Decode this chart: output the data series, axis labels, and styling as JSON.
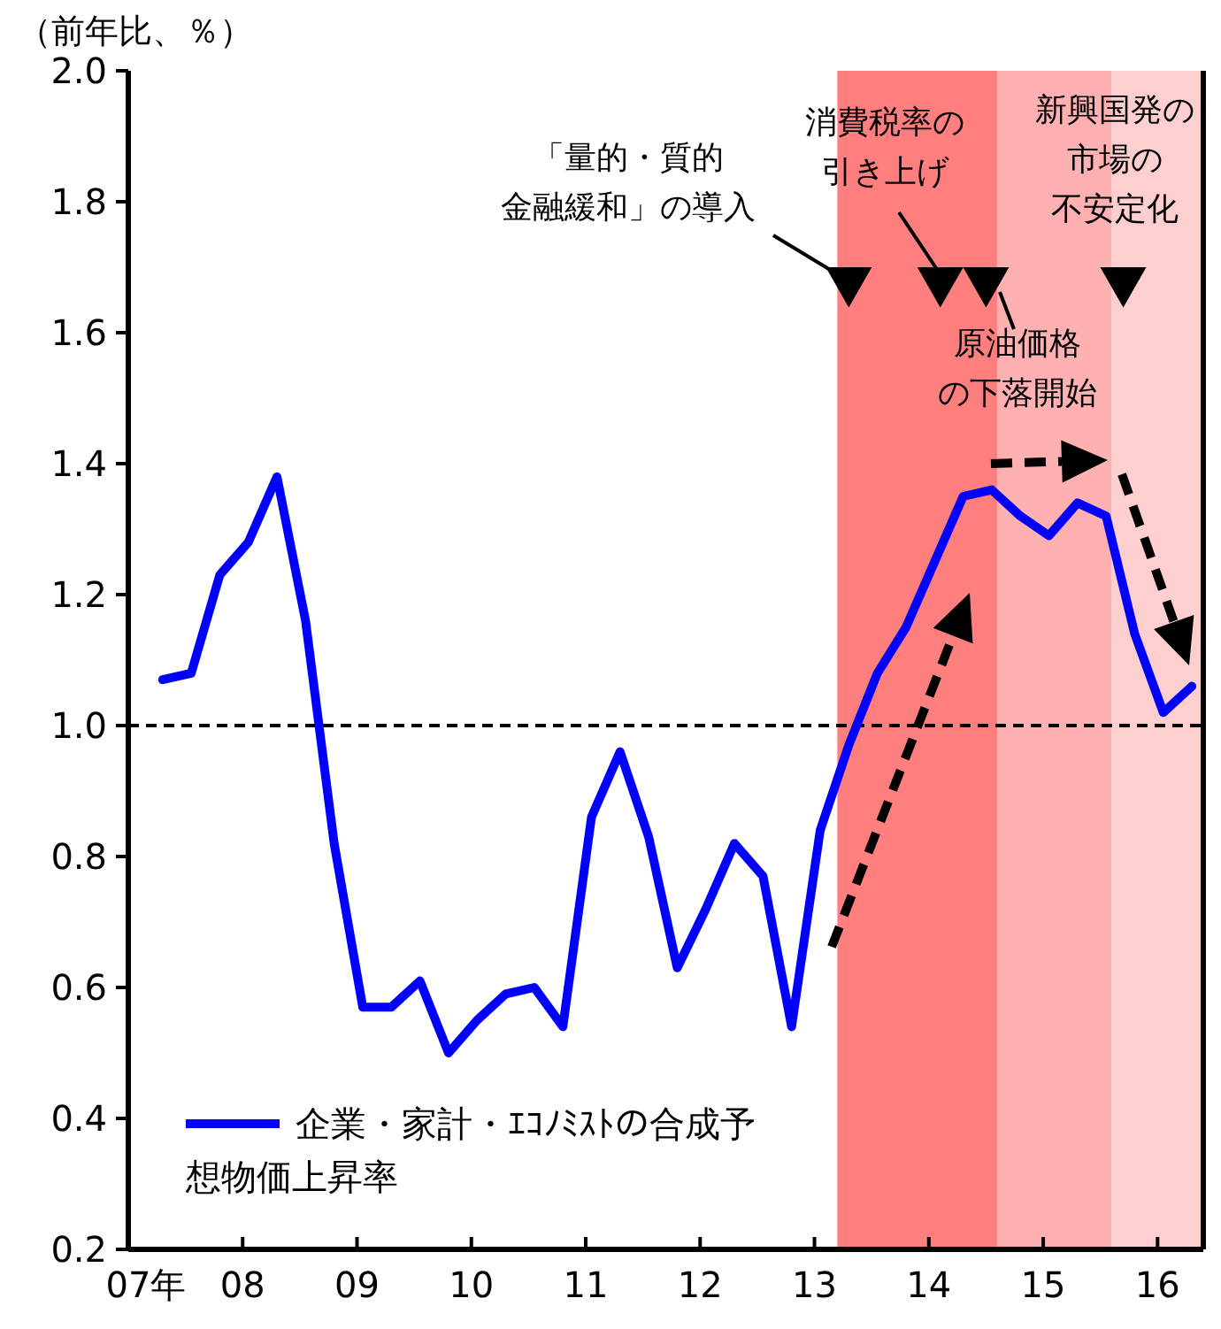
{
  "chart_data": {
    "type": "line",
    "ylabel": "（前年比、％）",
    "x": [
      7.3,
      7.55,
      7.8,
      8.05,
      8.3,
      8.55,
      8.8,
      9.05,
      9.3,
      9.55,
      9.8,
      10.05,
      10.3,
      10.55,
      10.8,
      11.05,
      11.3,
      11.55,
      11.8,
      12.05,
      12.3,
      12.55,
      12.8,
      13.05,
      13.3,
      13.55,
      13.8,
      14.05,
      14.3,
      14.55,
      14.8,
      15.05,
      15.3,
      15.55,
      15.8,
      16.05,
      16.3
    ],
    "series": [
      {
        "name": "企業・家計・ｴｺﾉﾐｽﾄの合成予想物価上昇率",
        "color": "#0000ff",
        "values": [
          1.07,
          1.08,
          1.23,
          1.28,
          1.38,
          1.16,
          0.82,
          0.57,
          0.57,
          0.61,
          0.5,
          0.55,
          0.59,
          0.6,
          0.54,
          0.86,
          0.96,
          0.83,
          0.63,
          0.72,
          0.82,
          0.77,
          0.54,
          0.84,
          0.97,
          1.08,
          1.15,
          1.25,
          1.35,
          1.36,
          1.32,
          1.29,
          1.34,
          1.32,
          1.14,
          1.02,
          1.06
        ]
      },
      {
        "type": "scatter",
        "marker": "triangle",
        "color": "#000000",
        "x": [
          13.3,
          14.1,
          14.5,
          15.7
        ],
        "values": [
          1.67,
          1.67,
          1.67,
          1.67
        ]
      }
    ],
    "xlim": [
      7,
      16.4
    ],
    "xticks": [
      {
        "value": 7,
        "label": "07年"
      },
      {
        "value": 8,
        "label": "08"
      },
      {
        "value": 9,
        "label": "09"
      },
      10,
      11,
      12,
      13,
      14,
      15,
      16
    ],
    "ylim": [
      0.2,
      2.0
    ],
    "yticks": [
      {
        "value": 0.2,
        "label": "0.2"
      },
      {
        "value": 0.4,
        "label": "0.4"
      },
      {
        "value": 0.6,
        "label": "0.6"
      },
      {
        "value": 0.8,
        "label": "0.8"
      },
      {
        "value": 1.0,
        "label": "1.0"
      },
      {
        "value": 1.2,
        "label": "1.2"
      },
      {
        "value": 1.4,
        "label": "1.4"
      },
      {
        "value": 1.6,
        "label": "1.6"
      },
      {
        "value": 1.8,
        "label": "1.8"
      },
      {
        "value": 2.0,
        "label": "2.0"
      }
    ],
    "ref_lines": [
      {
        "axis": "y",
        "value": 1.0,
        "color": "#000000",
        "line_style": "dashed"
      }
    ],
    "bands": [
      {
        "axis": "x",
        "from": 13.2,
        "to": 14.6,
        "color": "#ff7f7f"
      },
      {
        "axis": "x",
        "from": 14.6,
        "to": 15.6,
        "color": "#ffb0b0"
      },
      {
        "axis": "x",
        "from": 15.6,
        "to": 16.4,
        "color": "#ffcfcf"
      }
    ],
    "annotations": [
      "「量的・質的金融緩和」の導入",
      "消費税率の引き上げ",
      "原油価格の下落開始",
      "新興国発の市場の不安定化"
    ],
    "legend": "bottom left",
    "grid": false,
    "line_style": "solid",
    "marker": "none"
  }
}
